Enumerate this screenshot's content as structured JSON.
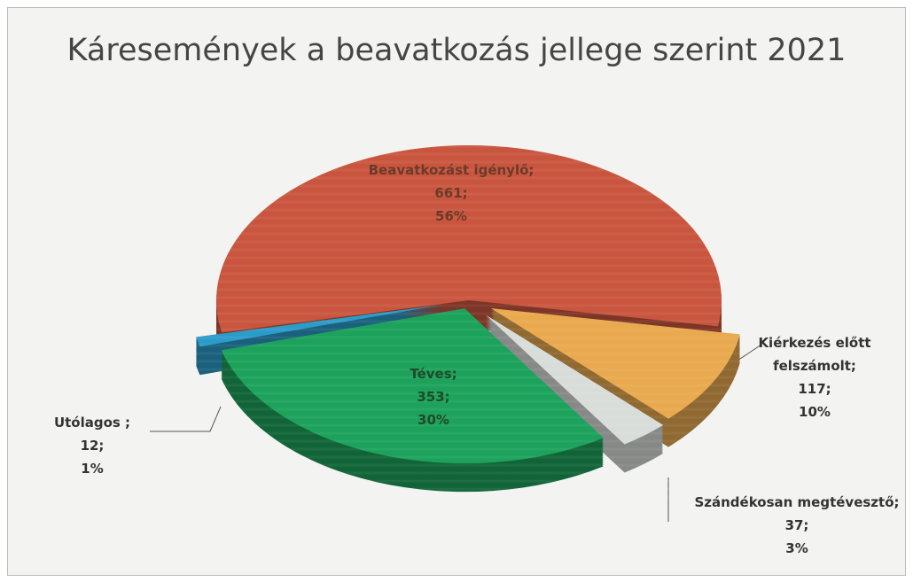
{
  "chart_data": {
    "type": "pie",
    "title": "Káresemények a beavatkozás jellege szerint 2021",
    "categories": [
      "Beavatkozást igénylő;",
      "Kiérkezés előtt felszámolt;",
      "Szándékosan megtévesztő;",
      "Téves;",
      "Utólagos ;"
    ],
    "values": [
      661,
      117,
      37,
      353,
      12
    ],
    "value_labels": [
      "661;",
      "117;",
      "37;",
      "353;",
      "12;"
    ],
    "percents": [
      56,
      10,
      3,
      30,
      1
    ],
    "percent_labels": [
      "56%",
      "10%",
      "3%",
      "30%",
      "1%"
    ],
    "colors": [
      "#c9553e",
      "#e9a94f",
      "#d9ddd9",
      "#1ca25b",
      "#2b9bc9"
    ]
  }
}
